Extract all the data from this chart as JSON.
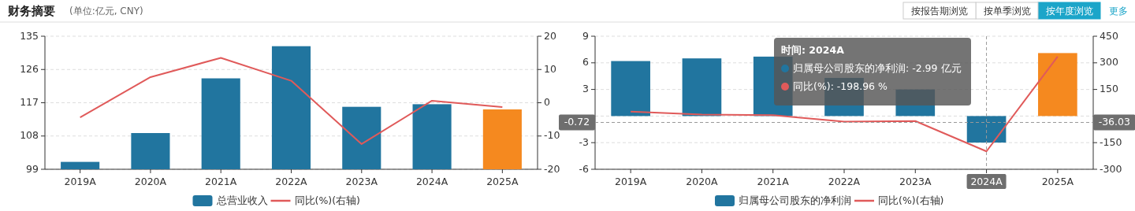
{
  "chart_data": [
    {
      "type": "bar",
      "title": "财务摘要",
      "subtitle": "(单位:亿元, CNY)",
      "annotations": [
        "按报告期浏览",
        "按单季浏览",
        "按年度浏览",
        "更多"
      ],
      "categories": [
        "2019A",
        "2020A",
        "2021A",
        "2022A",
        "2023A",
        "2024A",
        "2025A"
      ],
      "series": [
        {
          "name": "总营业收入",
          "color": "#21759f",
          "colors": [
            "#21759f",
            "#21759f",
            "#21759f",
            "#21759f",
            "#21759f",
            "#21759f",
            "#f5891f"
          ],
          "values": [
            101.0,
            108.8,
            123.6,
            132.3,
            115.9,
            116.6,
            115.2
          ]
        },
        {
          "name": "同比(%)(右轴)",
          "type": "line",
          "color": "#e05a5a",
          "axis": "y2",
          "values": [
            -4.4,
            7.7,
            13.5,
            6.6,
            -12.4,
            0.6,
            -1.3
          ]
        }
      ],
      "ylim": [
        99,
        135
      ],
      "yticks": [
        99,
        108,
        117,
        126,
        135
      ],
      "y2lim": [
        -20,
        20
      ],
      "y2ticks": [
        -20,
        -10,
        0,
        10,
        20
      ],
      "grid": "y",
      "legend": "bottom"
    },
    {
      "type": "bar",
      "annotations": [
        "时间: 2024A",
        "归属母公司股东的净利润: -2.99  亿元",
        "同比(%): -198.96  %",
        "-36.03"
      ],
      "categories": [
        "2019A",
        "2020A",
        "2021A",
        "2022A",
        "2023A",
        "2024A",
        "2025A"
      ],
      "series": [
        {
          "name": "归属母公司股东的净利润",
          "color": "#21759f",
          "colors": [
            "#21759f",
            "#21759f",
            "#21759f",
            "#21759f",
            "#21759f",
            "#21759f",
            "#f5891f"
          ],
          "values": [
            6.2,
            6.5,
            6.7,
            4.3,
            3.0,
            -2.99,
            7.1
          ]
        },
        {
          "name": "同比(%)(右轴)",
          "type": "line",
          "color": "#e05a5a",
          "axis": "y2",
          "values": [
            25,
            8,
            5,
            -32,
            -28,
            -198.96,
            335
          ]
        }
      ],
      "ylim": [
        -6,
        9
      ],
      "yticks": [
        -6,
        -3,
        {
          "value": 0,
          "label": null
        },
        3,
        6,
        9
      ],
      "y2lim": [
        -300,
        450
      ],
      "y2ticks": [
        -300,
        -150,
        {
          "value": 0,
          "label": null
        },
        150,
        300,
        450
      ],
      "ref_lines": [
        {
          "axis": "x",
          "value": "2024A",
          "color": "#999999",
          "line_style": "dashed"
        },
        {
          "axis": "y",
          "value": -0.72,
          "label": "-0.72",
          "color": "#999999",
          "line_style": "dashed"
        }
      ],
      "grid": "y",
      "legend": "bottom"
    }
  ]
}
